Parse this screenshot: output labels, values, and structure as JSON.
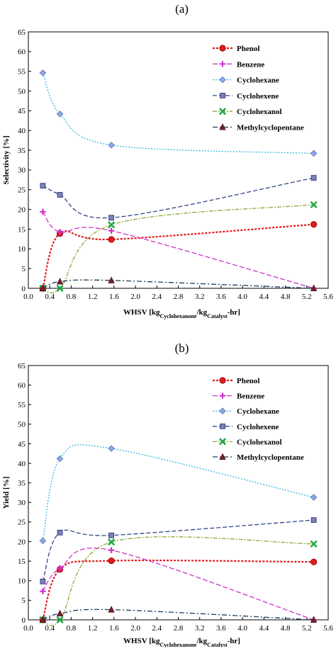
{
  "chart_data": [
    {
      "type": "line",
      "panel_label": "(a)",
      "xlabel": {
        "main": "WHSV [kg",
        "sub1": "Cyclohexanone",
        "mid": "/kg",
        "sub2": "Catalyst",
        "end": "-hr]"
      },
      "ylabel": "Selectivity [%]",
      "xlim": [
        0.0,
        5.6
      ],
      "ylim": [
        0,
        65
      ],
      "xticks": [
        "0.0",
        "0.4",
        "0.8",
        "1.2",
        "1.6",
        "2.0",
        "2.4",
        "2.8",
        "3.2",
        "3.6",
        "4.0",
        "4.4",
        "4.8",
        "5.2",
        "5.6"
      ],
      "yticks": [
        "0",
        "5",
        "10",
        "15",
        "20",
        "25",
        "30",
        "35",
        "40",
        "45",
        "50",
        "55",
        "60",
        "65"
      ],
      "grid": false,
      "legend_position": "top-right",
      "x": [
        0.27,
        0.59,
        1.55,
        5.33
      ],
      "series": [
        {
          "name": "Phenol",
          "color": "#e41a1c",
          "marker": "circle",
          "dash": "3,2",
          "width": 2.2,
          "values": [
            0,
            13.9,
            12.4,
            16.2
          ]
        },
        {
          "name": "Benzene",
          "color": "#cc33cc",
          "marker": "plus",
          "dash": "7,3",
          "width": 1.3,
          "values": [
            19.4,
            14.3,
            14.6,
            0
          ]
        },
        {
          "name": "Cyclohexane",
          "color": "#33bbdd",
          "marker": "diamond",
          "dash": "2,2",
          "width": 1.3,
          "values": [
            54.6,
            44.2,
            36.3,
            34.2
          ]
        },
        {
          "name": "Cyclohexene",
          "color": "#334488",
          "marker": "square",
          "dash": "6,3",
          "width": 1.3,
          "values": [
            26.0,
            23.7,
            17.9,
            28.0
          ]
        },
        {
          "name": "Cyclohexanol",
          "color": "#88aa33",
          "marker": "xcross",
          "dash": "6,2,2,2",
          "width": 1.3,
          "values": [
            0,
            0,
            16.1,
            21.2
          ]
        },
        {
          "name": "Methylcyclopentane",
          "color": "#1e3c5a",
          "marker": "triangle",
          "dash": "7,3,2,3",
          "width": 1.3,
          "values": [
            0,
            1.7,
            2.0,
            0
          ]
        }
      ]
    },
    {
      "type": "line",
      "panel_label": "(b)",
      "xlabel": {
        "main": "WHSV [kg",
        "sub1": "Cyclohexanone",
        "mid": "/kg",
        "sub2": "Catalyst",
        "end": "-hr]"
      },
      "ylabel": "Yield [%]",
      "xlim": [
        0.0,
        5.6
      ],
      "ylim": [
        0,
        65
      ],
      "xticks": [
        "0.0",
        "0.4",
        "0.8",
        "1.2",
        "1.6",
        "2.0",
        "2.4",
        "2.8",
        "3.2",
        "3.6",
        "4.0",
        "4.4",
        "4.8",
        "5.2",
        "5.6"
      ],
      "yticks": [
        "0",
        "5",
        "10",
        "15",
        "20",
        "25",
        "30",
        "35",
        "40",
        "45",
        "50",
        "55",
        "60",
        "65"
      ],
      "grid": false,
      "legend_position": "top-right",
      "x": [
        0.27,
        0.59,
        1.55,
        5.33
      ],
      "series": [
        {
          "name": "Phenol",
          "color": "#e41a1c",
          "marker": "circle",
          "dash": "3,2",
          "width": 2.2,
          "values": [
            0,
            12.9,
            15.1,
            14.8
          ]
        },
        {
          "name": "Benzene",
          "color": "#cc33cc",
          "marker": "plus",
          "dash": "7,3",
          "width": 1.3,
          "values": [
            7.3,
            13.2,
            17.8,
            0
          ]
        },
        {
          "name": "Cyclohexane",
          "color": "#33bbdd",
          "marker": "diamond",
          "dash": "2,2",
          "width": 1.3,
          "values": [
            20.2,
            41.2,
            43.8,
            31.3
          ]
        },
        {
          "name": "Cyclohexene",
          "color": "#334488",
          "marker": "square",
          "dash": "6,3",
          "width": 1.3,
          "values": [
            9.8,
            22.3,
            21.6,
            25.5
          ]
        },
        {
          "name": "Cyclohexanol",
          "color": "#88aa33",
          "marker": "xcross",
          "dash": "6,2,2,2",
          "width": 1.3,
          "values": [
            0,
            0,
            19.9,
            19.4
          ]
        },
        {
          "name": "Methylcyclopentane",
          "color": "#1e3c5a",
          "marker": "triangle",
          "dash": "7,3,2,3",
          "width": 1.3,
          "values": [
            0,
            1.6,
            2.6,
            0
          ]
        }
      ]
    }
  ]
}
